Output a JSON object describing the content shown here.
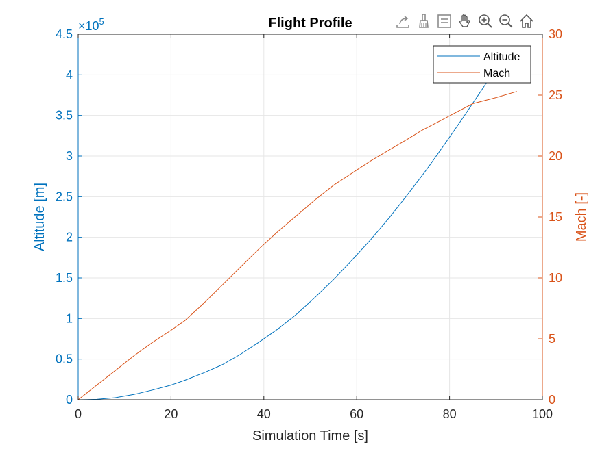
{
  "toolbar": {
    "items": [
      {
        "name": "export-icon"
      },
      {
        "name": "brush-icon"
      },
      {
        "name": "datatip-icon"
      },
      {
        "name": "pan-hand-icon"
      },
      {
        "name": "zoom-in-icon"
      },
      {
        "name": "zoom-out-icon"
      },
      {
        "name": "home-icon"
      }
    ]
  },
  "colors": {
    "altitude": "#0072BD",
    "mach": "#D95319",
    "grid": "#E6E6E6",
    "axis": "#262626"
  },
  "chart_data": {
    "type": "line",
    "title": "Flight Profile",
    "xlabel": "Simulation Time [s]",
    "ylabel_left": "Altitude [m]",
    "ylabel_right": "Mach [-]",
    "left_exponent_label": "×10",
    "left_exponent_power": "5",
    "xlim": [
      0,
      100
    ],
    "ylim_left": [
      0,
      450000
    ],
    "ylim_right": [
      0,
      30
    ],
    "x_ticks": [
      "0",
      "20",
      "40",
      "60",
      "80",
      "100"
    ],
    "y_left_ticks": [
      "0",
      "0.5",
      "1",
      "1.5",
      "2",
      "2.5",
      "3",
      "3.5",
      "4",
      "4.5"
    ],
    "y_right_ticks": [
      "0",
      "5",
      "10",
      "15",
      "20",
      "25",
      "30"
    ],
    "grid": true,
    "legend_position": "top-right",
    "series": [
      {
        "name": "Altitude",
        "axis": "left",
        "x": [
          0,
          4,
          8,
          12,
          16,
          20,
          23,
          27,
          31,
          35,
          39,
          43,
          47,
          51,
          55,
          59,
          63,
          67,
          71,
          75,
          79,
          83,
          87,
          91,
          93
        ],
        "y": [
          0,
          500,
          2500,
          6500,
          12000,
          18000,
          24000,
          33000,
          43000,
          56000,
          71000,
          87000,
          105000,
          126000,
          148000,
          172000,
          197000,
          224000,
          253000,
          283000,
          315000,
          348000,
          382000,
          417000,
          435000
        ]
      },
      {
        "name": "Mach",
        "axis": "right",
        "x": [
          0,
          4,
          8,
          12,
          16,
          20,
          23,
          27,
          31,
          35,
          39,
          43,
          47,
          51,
          55,
          59,
          63,
          67,
          71,
          74,
          78,
          82,
          85,
          90,
          94.5
        ],
        "y": [
          0,
          1.2,
          2.4,
          3.6,
          4.7,
          5.7,
          6.5,
          7.9,
          9.4,
          10.9,
          12.4,
          13.8,
          15.1,
          16.4,
          17.6,
          18.6,
          19.6,
          20.5,
          21.4,
          22.1,
          22.9,
          23.7,
          24.3,
          24.8,
          25.3
        ]
      }
    ]
  }
}
